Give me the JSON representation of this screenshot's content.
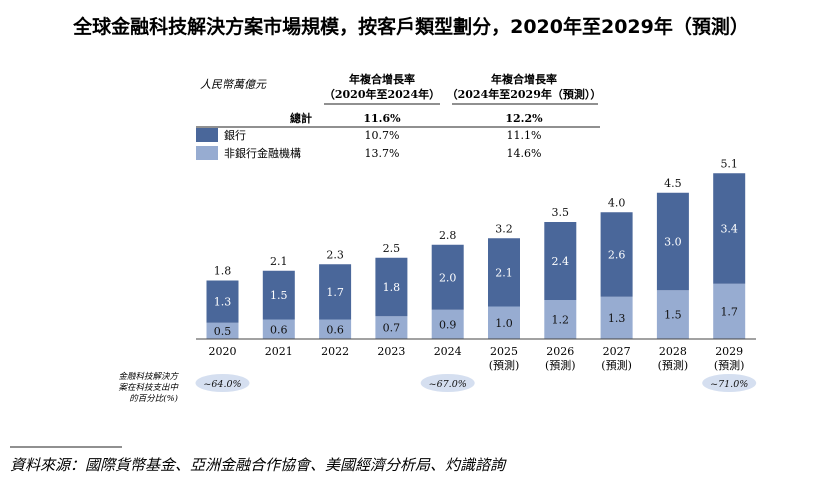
{
  "title": "全球金融科技解決方案市場規模，按客戶類型劃分，2020年至2029年（預測）",
  "unit": "人民幣萬億元",
  "cagr_header_1_line1": "年複合增長率",
  "cagr_header_1_line2": "（2020年至2024年）",
  "cagr_header_2_line1": "年複合增長率",
  "cagr_header_2_line2": "（2024年至2029年（預測））",
  "legend_total_label": "總計",
  "share_label_line1": "金融科技解決方",
  "share_label_line2": "案在科技支出中",
  "share_label_line3": "的百分比(%)",
  "source": "資料來源：國際貨幣基金、亞洲金融合作協會、美國經濟分析局、灼識諮詢",
  "colors": {
    "bank": "#4a679a",
    "nonbank": "#97acd1",
    "share_pill": "#d5dff0"
  },
  "chart_data": {
    "type": "bar",
    "stacked": true,
    "categories": [
      "2020",
      "2021",
      "2022",
      "2023",
      "2024",
      "2025",
      "2026",
      "2027",
      "2028",
      "2029"
    ],
    "category_sublabels": [
      "",
      "",
      "",
      "",
      "",
      "(預測)",
      "(預測)",
      "(預測)",
      "(預測)",
      "(預測)"
    ],
    "series": [
      {
        "name": "非銀行金融機構",
        "values": [
          0.5,
          0.6,
          0.6,
          0.7,
          0.9,
          1.0,
          1.2,
          1.3,
          1.5,
          1.7
        ]
      },
      {
        "name": "銀行",
        "values": [
          1.3,
          1.5,
          1.7,
          1.8,
          2.0,
          2.1,
          2.4,
          2.6,
          3.0,
          3.4
        ]
      }
    ],
    "totals": [
      1.8,
      2.1,
      2.3,
      2.5,
      2.8,
      3.2,
      3.5,
      4.0,
      4.5,
      5.1
    ],
    "value_labels": {
      "nonbank": [
        "0.5",
        "0.6",
        "0.6",
        "0.7",
        "0.9",
        "1.0",
        "1.2",
        "1.3",
        "1.5",
        "1.7"
      ],
      "bank": [
        "1.3",
        "1.5",
        "1.7",
        "1.8",
        "2.0",
        "2.1",
        "2.4",
        "2.6",
        "3.0",
        "3.4"
      ],
      "total": [
        "1.8",
        "2.1",
        "2.3",
        "2.5",
        "2.8",
        "3.2",
        "3.5",
        "4.0",
        "4.5",
        "5.1"
      ]
    },
    "cagr_table": [
      {
        "label": "總計",
        "cagr_2020_2024": "11.6%",
        "cagr_2024_2029": "12.2%"
      },
      {
        "label": "銀行",
        "cagr_2020_2024": "10.7%",
        "cagr_2024_2029": "11.1%"
      },
      {
        "label": "非銀行金融機構",
        "cagr_2020_2024": "13.7%",
        "cagr_2024_2029": "14.6%"
      }
    ],
    "share_of_tech_spend": [
      {
        "category": "2020",
        "value": "~64.0%"
      },
      {
        "category": "2024",
        "value": "~67.0%"
      },
      {
        "category": "2029",
        "value": "~71.0%"
      }
    ],
    "ylim": [
      0,
      5.5
    ],
    "grid": false,
    "legend_position": "top-left"
  }
}
